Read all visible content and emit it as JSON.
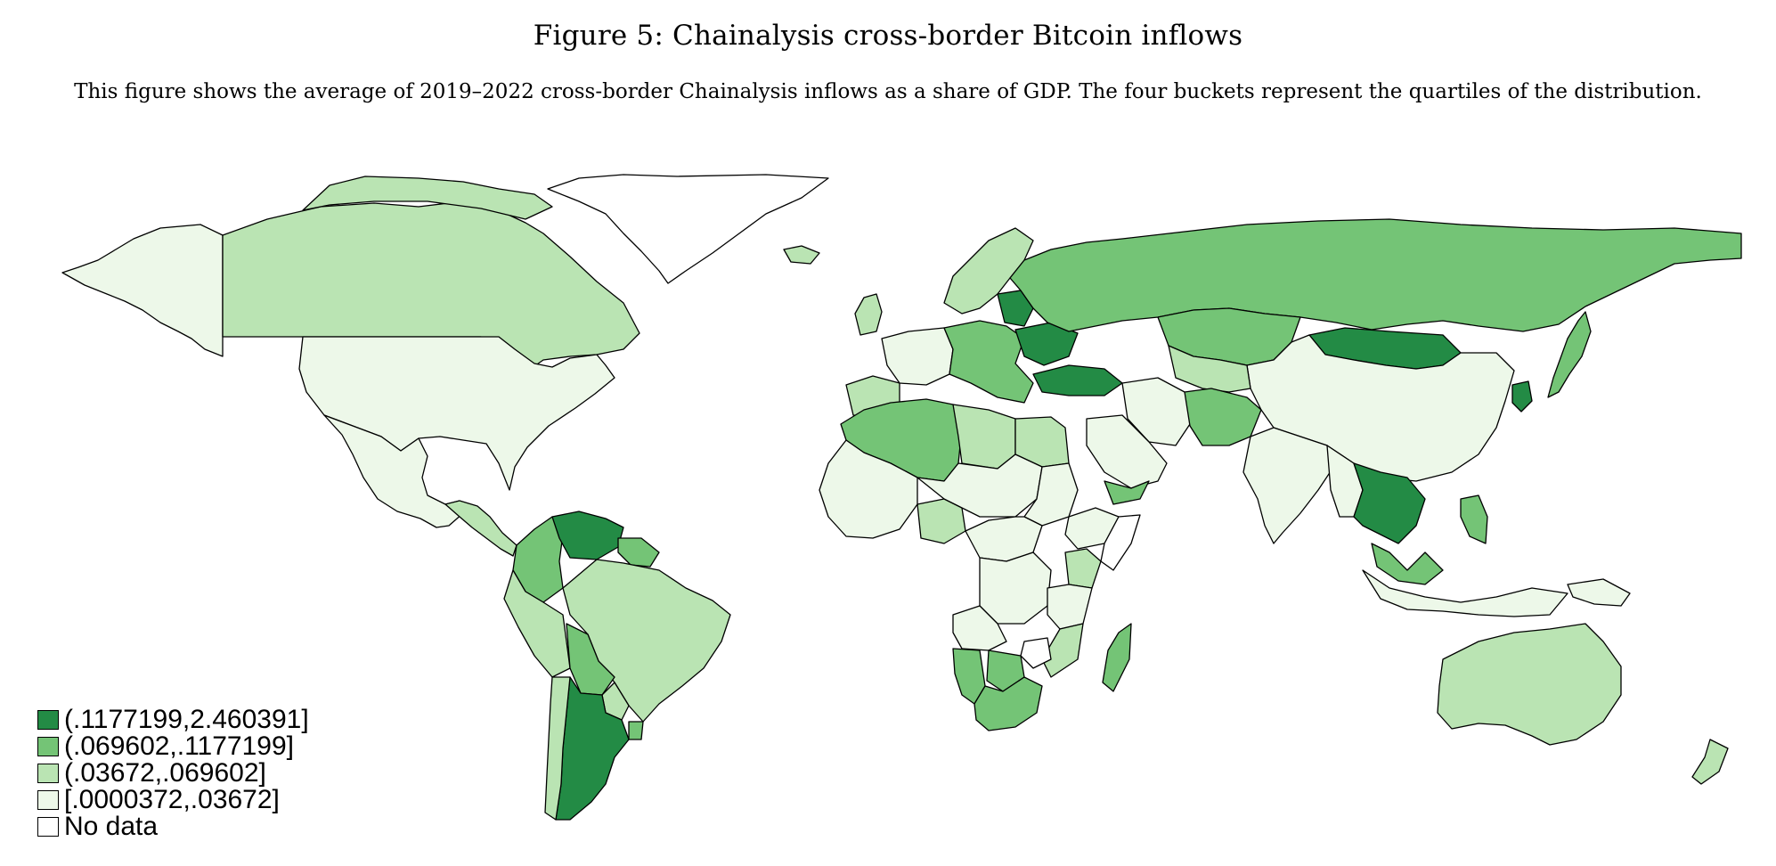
{
  "figure": {
    "title": "Figure 5: Chainalysis cross-border Bitcoin inflows",
    "caption": "This figure shows the average of 2019–2022 cross-border Chainalysis inflows as a share of GDP. The four buckets represent the quartiles of the distribution."
  },
  "colors": {
    "q4": "#238b45",
    "q3": "#74c476",
    "q2": "#bae4b3",
    "q1": "#edf8e9",
    "nodata": "#ffffff",
    "border": "#000000"
  },
  "legend": {
    "placement": "bottom-left",
    "items": [
      {
        "label": "(.1177199,2.460391]",
        "bucket": "q4"
      },
      {
        "label": "(.069602,.1177199]",
        "bucket": "q3"
      },
      {
        "label": "(.03672,.069602]",
        "bucket": "q2"
      },
      {
        "label": "[.0000372,.03672]",
        "bucket": "q1"
      },
      {
        "label": "No data",
        "bucket": "nodata"
      }
    ]
  },
  "regions": [
    {
      "name": "Alaska",
      "bucket": "q1"
    },
    {
      "name": "Canada",
      "bucket": "q2"
    },
    {
      "name": "Greenland",
      "bucket": "nodata"
    },
    {
      "name": "United States",
      "bucket": "q1"
    },
    {
      "name": "Mexico",
      "bucket": "q1"
    },
    {
      "name": "Central America",
      "bucket": "q2"
    },
    {
      "name": "Colombia",
      "bucket": "q3"
    },
    {
      "name": "Venezuela",
      "bucket": "q4"
    },
    {
      "name": "Guyana",
      "bucket": "q3"
    },
    {
      "name": "Brazil",
      "bucket": "q2"
    },
    {
      "name": "Peru",
      "bucket": "q2"
    },
    {
      "name": "Bolivia",
      "bucket": "q3"
    },
    {
      "name": "Paraguay",
      "bucket": "q2"
    },
    {
      "name": "Argentina",
      "bucket": "q4"
    },
    {
      "name": "Chile",
      "bucket": "q2"
    },
    {
      "name": "Uruguay",
      "bucket": "q3"
    },
    {
      "name": "Iceland",
      "bucket": "q2"
    },
    {
      "name": "Scandinavia",
      "bucket": "q2"
    },
    {
      "name": "United Kingdom",
      "bucket": "q2"
    },
    {
      "name": "Western Europe",
      "bucket": "q1"
    },
    {
      "name": "Central Europe",
      "bucket": "q3"
    },
    {
      "name": "Ukraine",
      "bucket": "q4"
    },
    {
      "name": "Baltics",
      "bucket": "q4"
    },
    {
      "name": "Iberia",
      "bucket": "q2"
    },
    {
      "name": "Russia",
      "bucket": "q3"
    },
    {
      "name": "Kazakhstan",
      "bucket": "q3"
    },
    {
      "name": "Mongolia",
      "bucket": "q4"
    },
    {
      "name": "Turkey",
      "bucket": "q4"
    },
    {
      "name": "Central Asia",
      "bucket": "q2"
    },
    {
      "name": "China",
      "bucket": "q1"
    },
    {
      "name": "Korea",
      "bucket": "q4"
    },
    {
      "name": "Japan",
      "bucket": "q3"
    },
    {
      "name": "Iran",
      "bucket": "q1"
    },
    {
      "name": "Afghanistan Pakistan",
      "bucket": "q3"
    },
    {
      "name": "India",
      "bucket": "q1"
    },
    {
      "name": "Arabia",
      "bucket": "q1"
    },
    {
      "name": "Yemen",
      "bucket": "q3"
    },
    {
      "name": "Thailand Vietnam",
      "bucket": "q4"
    },
    {
      "name": "Myanmar",
      "bucket": "q1"
    },
    {
      "name": "Malaysia",
      "bucket": "q3"
    },
    {
      "name": "Philippines",
      "bucket": "q3"
    },
    {
      "name": "Indonesia",
      "bucket": "q1"
    },
    {
      "name": "Papua New Guinea",
      "bucket": "q1"
    },
    {
      "name": "Australia",
      "bucket": "q2"
    },
    {
      "name": "New Zealand",
      "bucket": "q2"
    },
    {
      "name": "Morocco Algeria",
      "bucket": "q3"
    },
    {
      "name": "Libya",
      "bucket": "q2"
    },
    {
      "name": "Egypt",
      "bucket": "q2"
    },
    {
      "name": "Sahel",
      "bucket": "q1"
    },
    {
      "name": "West Africa",
      "bucket": "q1"
    },
    {
      "name": "Nigeria",
      "bucket": "q2"
    },
    {
      "name": "Central Africa",
      "bucket": "q1"
    },
    {
      "name": "Sudan",
      "bucket": "q1"
    },
    {
      "name": "Ethiopia",
      "bucket": "q1"
    },
    {
      "name": "Somalia",
      "bucket": "nodata"
    },
    {
      "name": "Kenya",
      "bucket": "q2"
    },
    {
      "name": "Congo",
      "bucket": "q1"
    },
    {
      "name": "Angola",
      "bucket": "q1"
    },
    {
      "name": "Tanzania",
      "bucket": "q1"
    },
    {
      "name": "Namibia",
      "bucket": "q3"
    },
    {
      "name": "Botswana",
      "bucket": "q3"
    },
    {
      "name": "Zimbabwe",
      "bucket": "nodata"
    },
    {
      "name": "South Africa",
      "bucket": "q3"
    },
    {
      "name": "Madagascar",
      "bucket": "q3"
    },
    {
      "name": "Mozambique",
      "bucket": "q2"
    }
  ]
}
